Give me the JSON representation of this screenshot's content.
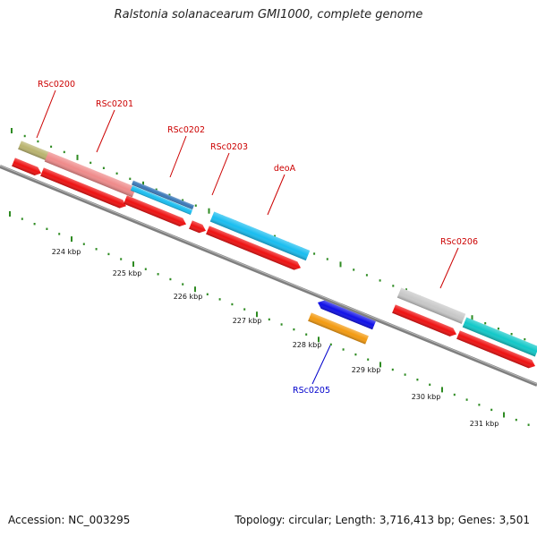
{
  "title": "Ralstonia solanacearum GMI1000, complete genome",
  "footer": {
    "accession": "Accession: NC_003295",
    "summary": "Topology: circular; Length: 3,716,413 bp; Genes: 3,501"
  },
  "colors": {
    "backbone": "#8a8a8a",
    "tick": "#2e8b22",
    "label_forward": "#cc0000",
    "label_reverse": "#0000cc",
    "cds": "#ee1111"
  },
  "scale_labels": [
    "224 kbp",
    "225 kbp",
    "226 kbp",
    "227 kbp",
    "228 kbp",
    "229 kbp",
    "230 kbp",
    "231 kbp"
  ],
  "gene_labels": [
    {
      "text": "RSc0200",
      "strand": "forward"
    },
    {
      "text": "RSc0201",
      "strand": "forward"
    },
    {
      "text": "RSc0202",
      "strand": "forward"
    },
    {
      "text": "RSc0203",
      "strand": "forward"
    },
    {
      "text": "deoA",
      "strand": "forward"
    },
    {
      "text": "RSc0206",
      "strand": "forward"
    },
    {
      "text": "RSc0205",
      "strand": "reverse"
    }
  ],
  "feature_colors": [
    "#b9b36e",
    "#ef8a8a",
    "#3a78b8",
    "#19bdf0",
    "#c8c8c8",
    "#12c8c8",
    "#1010e8",
    "#f39a10"
  ]
}
